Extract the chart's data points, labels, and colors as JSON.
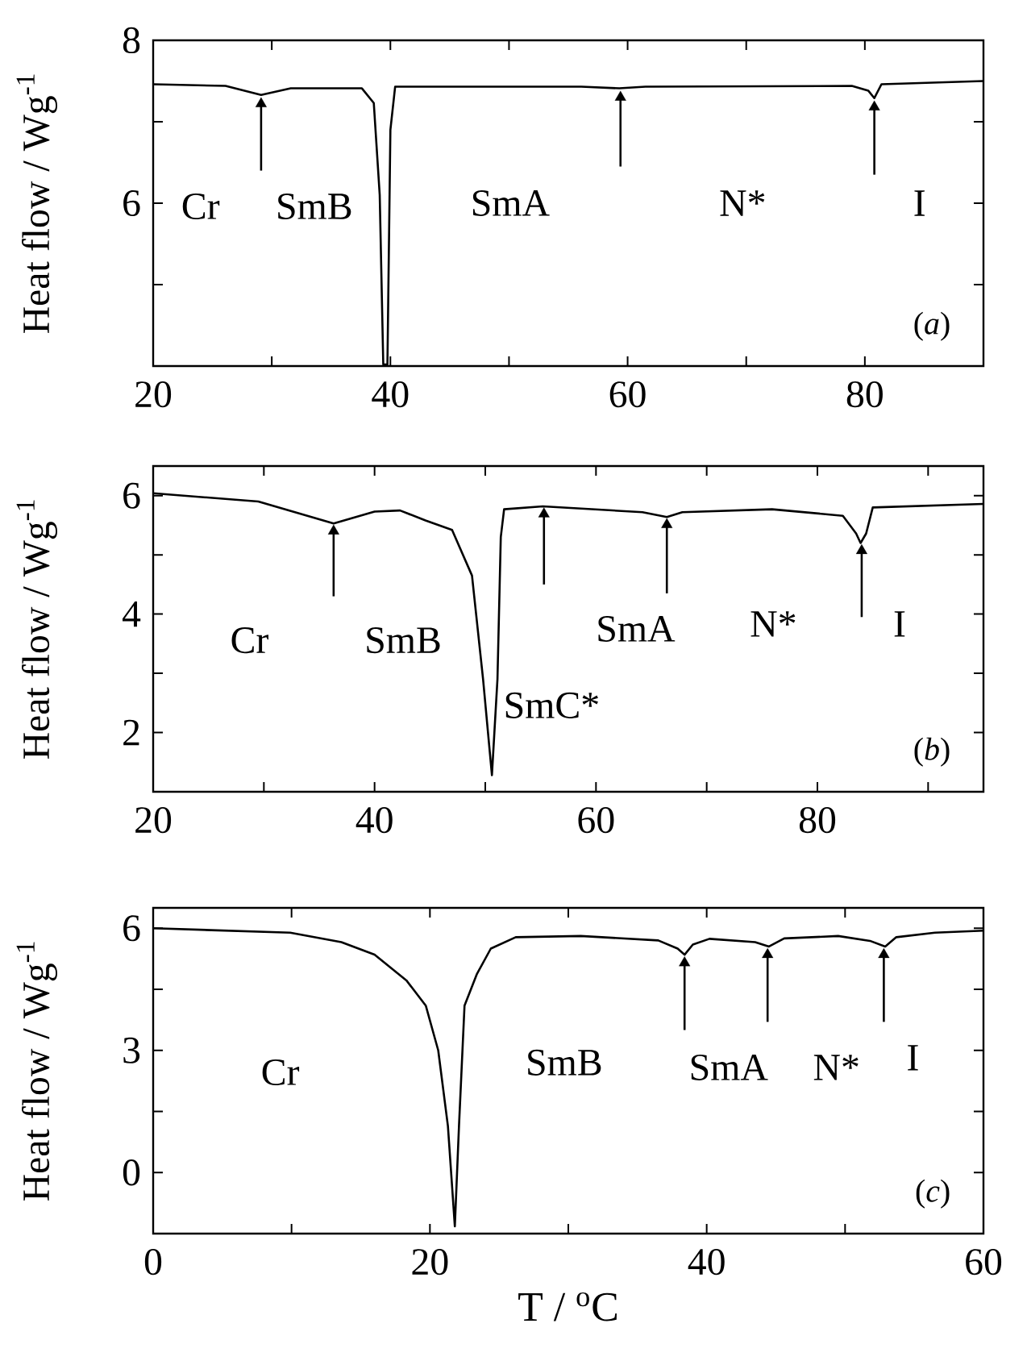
{
  "chart_data": [
    {
      "type": "line",
      "ylabel": "Heat flow / Wg$^{-1}$",
      "marker": "none",
      "xlim": [
        20,
        90
      ],
      "ylim": [
        4,
        8
      ],
      "xticks": [
        20,
        {
          "value": 30,
          "label": null
        },
        40,
        {
          "value": 50,
          "label": null
        },
        60,
        {
          "value": 70,
          "label": null
        },
        80
      ],
      "yticks": [
        {
          "value": 5,
          "label": null
        },
        6,
        {
          "value": 7,
          "label": null
        },
        8
      ],
      "series": [
        {
          "color": "#000000",
          "x": [
            20,
            26.1,
            29.1,
            31.6,
            37.6,
            38.6,
            39.1,
            39.4,
            39.75,
            40.0,
            40.4,
            56.1,
            59.3,
            61.5,
            78.9,
            80.3,
            80.8,
            81.4,
            90
          ],
          "values": [
            7.46,
            7.44,
            7.33,
            7.41,
            7.41,
            7.23,
            6.1,
            4.02,
            4.02,
            6.9,
            7.43,
            7.43,
            7.41,
            7.43,
            7.44,
            7.38,
            7.29,
            7.46,
            7.5
          ]
        },
        {
          "type": "scatter",
          "marker": "triangle",
          "color": "#000000",
          "x": [
            29.1,
            59.4,
            80.8
          ],
          "values": [
            7.22,
            7.3,
            7.18
          ],
          "errors": [
            [
              6.4,
              7.22
            ],
            [
              6.45,
              7.3
            ],
            [
              6.35,
              7.18
            ]
          ]
        }
      ],
      "annotations": [
        "Cr",
        "SmB",
        "SmA",
        "N*",
        "I",
        "(*a*)"
      ]
    },
    {
      "type": "line",
      "ylabel": "Heat flow / Wg$^{-1}$",
      "marker": "none",
      "xlim": [
        20,
        95
      ],
      "ylim": [
        1,
        6.5
      ],
      "xticks": [
        20,
        {
          "value": 30,
          "label": null
        },
        40,
        {
          "value": 50,
          "label": null
        },
        60,
        {
          "value": 70,
          "label": null
        },
        80,
        {
          "value": 90,
          "label": null
        }
      ],
      "yticks": [
        2,
        {
          "value": 3,
          "label": null
        },
        4,
        {
          "value": 5,
          "label": null
        },
        6
      ],
      "series": [
        {
          "color": "#000000",
          "x": [
            20,
            29.5,
            36.3,
            40,
            42.3,
            44.6,
            47,
            48.8,
            49.8,
            50.6,
            51.1,
            51.4,
            51.7,
            55.2,
            64.2,
            66.4,
            67.8,
            75.9,
            82.3,
            83.5,
            83.9,
            84.4,
            85,
            95
          ],
          "values": [
            6.04,
            5.9,
            5.53,
            5.73,
            5.75,
            5.58,
            5.42,
            4.65,
            2.9,
            1.28,
            2.9,
            5.3,
            5.77,
            5.82,
            5.72,
            5.64,
            5.72,
            5.77,
            5.66,
            5.36,
            5.2,
            5.36,
            5.8,
            5.86
          ]
        },
        {
          "type": "scatter",
          "marker": "triangle",
          "color": "#000000",
          "x": [
            36.3,
            55.3,
            66.4,
            84.0
          ],
          "values": [
            5.4,
            5.69,
            5.51,
            5.07
          ],
          "errors": [
            [
              4.3,
              5.4
            ],
            [
              4.5,
              5.69
            ],
            [
              4.35,
              5.51
            ],
            [
              3.95,
              5.07
            ]
          ]
        }
      ],
      "annotations": [
        "Cr",
        "SmB",
        "SmC*",
        "SmA",
        "N*",
        "I",
        "(*b*)"
      ]
    },
    {
      "type": "line",
      "xlabel": "T / $^{o}$C",
      "ylabel": "Heat flow / Wg$^{-1}$",
      "marker": "none",
      "xlim": [
        0,
        60
      ],
      "ylim": [
        -1.5,
        6.5
      ],
      "xticks": [
        0,
        {
          "value": 10,
          "label": null
        },
        20,
        {
          "value": 30,
          "label": null
        },
        40,
        {
          "value": 50,
          "label": null
        },
        60
      ],
      "yticks": [
        0,
        {
          "value": 1.5,
          "label": null
        },
        3,
        {
          "value": 4.5,
          "label": null
        },
        6
      ],
      "series": [
        {
          "color": "#000000",
          "x": [
            0,
            9.9,
            13.6,
            16,
            18.3,
            19.7,
            20.6,
            21.3,
            21.8,
            22.1,
            22.5,
            23.4,
            24.4,
            26.2,
            30.9,
            36.5,
            37.9,
            38.4,
            39,
            40.2,
            43.5,
            44.5,
            45.6,
            49.5,
            51.8,
            52.9,
            53.7,
            56.5,
            60
          ],
          "values": [
            6.0,
            5.89,
            5.66,
            5.35,
            4.72,
            4.1,
            3.0,
            1.14,
            -1.32,
            1.14,
            4.1,
            4.88,
            5.5,
            5.78,
            5.81,
            5.7,
            5.5,
            5.35,
            5.6,
            5.74,
            5.66,
            5.55,
            5.75,
            5.81,
            5.69,
            5.55,
            5.78,
            5.89,
            5.94
          ]
        },
        {
          "type": "scatter",
          "marker": "triangle",
          "color": "#000000",
          "x": [
            38.4,
            44.4,
            52.8
          ],
          "values": [
            5.15,
            5.35,
            5.35
          ],
          "errors": [
            [
              3.5,
              5.15
            ],
            [
              3.7,
              5.35
            ],
            [
              3.7,
              5.35
            ]
          ]
        }
      ],
      "annotations": [
        "Cr",
        "SmB",
        "SmA",
        "N*",
        "I",
        "(*c*)"
      ]
    }
  ]
}
